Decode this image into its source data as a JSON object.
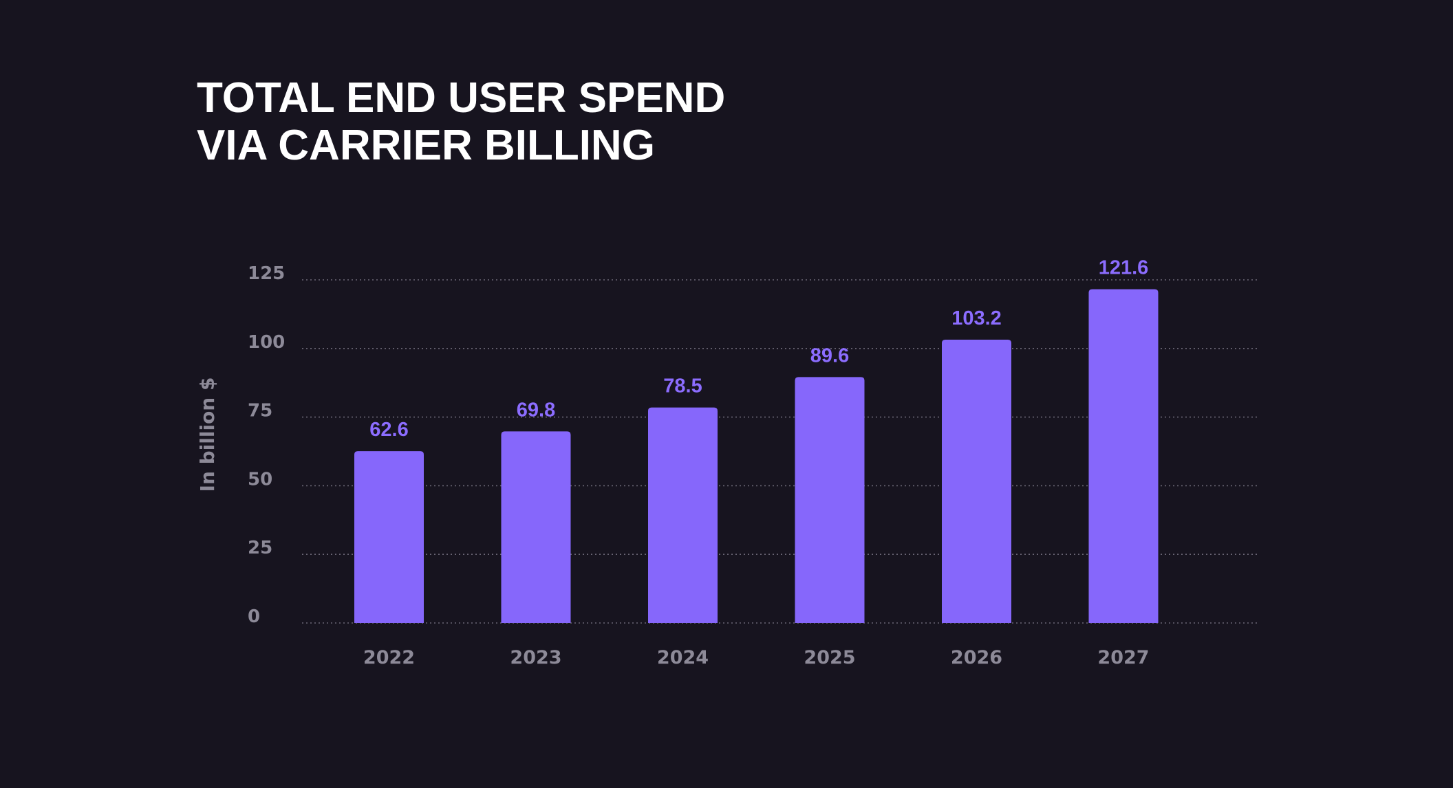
{
  "colors": {
    "background": "#17141f",
    "bar": "#8667fb",
    "value_label": "#8c6dff",
    "title": "#ffffff",
    "axis_text": "#8d8a98",
    "grid": "#6b6776"
  },
  "chart_data": {
    "type": "bar",
    "title_lines": [
      "TOTAL END USER SPEND",
      "VIA CARRIER BILLING"
    ],
    "xlabel": "",
    "ylabel": "In billion $",
    "categories": [
      "2022",
      "2023",
      "2024",
      "2025",
      "2026",
      "2027"
    ],
    "values": [
      62.6,
      69.8,
      78.5,
      89.6,
      103.2,
      121.6
    ],
    "value_labels": [
      "62.6",
      "69.8",
      "78.5",
      "89.6",
      "103.2",
      "121.6"
    ],
    "ylim": [
      0,
      125
    ],
    "yticks": [
      0,
      25,
      50,
      75,
      100,
      125
    ],
    "ytick_labels": [
      "0",
      "25",
      "50",
      "75",
      "100",
      "125"
    ],
    "grid": true,
    "legend": "none"
  }
}
